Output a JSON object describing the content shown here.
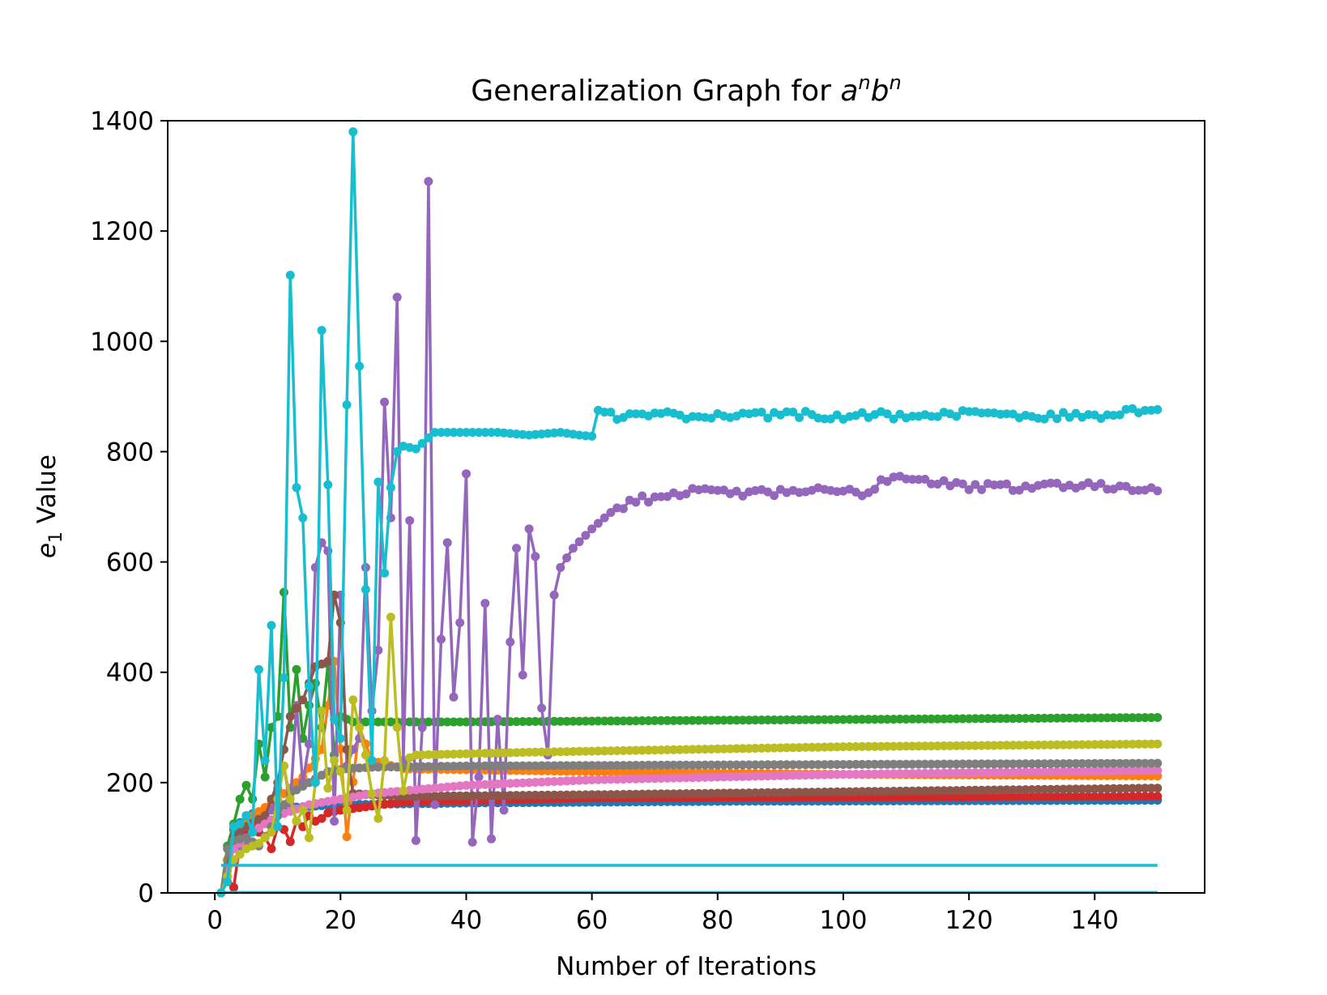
{
  "chart_data": {
    "type": "line",
    "title": "Generalization Graph for ",
    "title_math": {
      "a": "a",
      "exp1": "n",
      "b": "b",
      "exp2": "n"
    },
    "xlabel": "Number of Iterations",
    "ylabel": {
      "symbol": "e",
      "subscript": "1",
      "rest": " Value"
    },
    "xlim": [
      -7.5,
      157.5
    ],
    "ylim": [
      0,
      1400
    ],
    "xticks": [
      0,
      20,
      40,
      60,
      80,
      100,
      120,
      140
    ],
    "yticks": [
      0,
      200,
      400,
      600,
      800,
      1000,
      1200,
      1400
    ],
    "series": [
      {
        "name": "series-1",
        "color": "#1f77b4",
        "knots": [
          [
            1,
            0
          ],
          [
            2,
            60
          ],
          [
            3,
            115
          ],
          [
            5,
            140
          ],
          [
            8,
            150
          ],
          [
            12,
            155
          ],
          [
            20,
            160
          ],
          [
            40,
            163
          ],
          [
            80,
            166
          ],
          [
            150,
            168
          ]
        ]
      },
      {
        "name": "series-2",
        "color": "#ff7f0e",
        "knots": [
          [
            1,
            0
          ],
          [
            2,
            60
          ],
          [
            3,
            100
          ],
          [
            6,
            140
          ],
          [
            10,
            170
          ],
          [
            14,
            210
          ],
          [
            17,
            260
          ],
          [
            19,
            420
          ],
          [
            21,
            102
          ],
          [
            23,
            300
          ],
          [
            25,
            240
          ],
          [
            30,
            225
          ],
          [
            60,
            220
          ],
          [
            100,
            215
          ],
          [
            150,
            212
          ]
        ]
      },
      {
        "name": "series-3",
        "color": "#2ca02c",
        "knots": [
          [
            1,
            0
          ],
          [
            2,
            85
          ],
          [
            3,
            125
          ],
          [
            4,
            170
          ],
          [
            5,
            195
          ],
          [
            6,
            170
          ],
          [
            7,
            270
          ],
          [
            8,
            210
          ],
          [
            9,
            300
          ],
          [
            10,
            320
          ],
          [
            11,
            545
          ],
          [
            12,
            300
          ],
          [
            13,
            405
          ],
          [
            14,
            280
          ],
          [
            15,
            340
          ],
          [
            16,
            380
          ],
          [
            17,
            300
          ],
          [
            18,
            415
          ],
          [
            19,
            250
          ],
          [
            20,
            320
          ],
          [
            22,
            310
          ],
          [
            40,
            310
          ],
          [
            80,
            313
          ],
          [
            150,
            318
          ]
        ]
      },
      {
        "name": "series-4",
        "color": "#d62728",
        "knots": [
          [
            1,
            0
          ],
          [
            2,
            30
          ],
          [
            3,
            10
          ],
          [
            4,
            90
          ],
          [
            6,
            120
          ],
          [
            8,
            100
          ],
          [
            9,
            80
          ],
          [
            10,
            120
          ],
          [
            11,
            115
          ],
          [
            12,
            93
          ],
          [
            13,
            130
          ],
          [
            14,
            120
          ],
          [
            15,
            140
          ],
          [
            16,
            130
          ],
          [
            17,
            135
          ],
          [
            18,
            145
          ],
          [
            20,
            150
          ],
          [
            30,
            165
          ],
          [
            60,
            172
          ],
          [
            150,
            175
          ]
        ]
      },
      {
        "name": "series-5",
        "color": "#9467bd",
        "knots": [
          [
            1,
            0
          ],
          [
            3,
            60
          ],
          [
            6,
            110
          ],
          [
            9,
            150
          ],
          [
            11,
            230
          ],
          [
            12,
            160
          ],
          [
            13,
            340
          ],
          [
            14,
            200
          ],
          [
            15,
            270
          ],
          [
            16,
            590
          ],
          [
            17,
            635
          ],
          [
            18,
            620
          ],
          [
            19,
            130
          ],
          [
            20,
            540
          ],
          [
            21,
            230
          ],
          [
            22,
            260
          ],
          [
            23,
            280
          ],
          [
            24,
            590
          ],
          [
            25,
            330
          ],
          [
            26,
            440
          ],
          [
            27,
            890
          ],
          [
            28,
            680
          ],
          [
            29,
            1080
          ],
          [
            30,
            240
          ],
          [
            31,
            675
          ],
          [
            32,
            95
          ],
          [
            33,
            300
          ],
          [
            34,
            1290
          ],
          [
            35,
            160
          ],
          [
            36,
            460
          ],
          [
            37,
            635
          ],
          [
            38,
            355
          ],
          [
            39,
            490
          ],
          [
            40,
            760
          ],
          [
            41,
            92
          ],
          [
            42,
            210
          ],
          [
            43,
            525
          ],
          [
            44,
            98
          ],
          [
            45,
            315
          ],
          [
            46,
            150
          ],
          [
            47,
            455
          ],
          [
            48,
            625
          ],
          [
            49,
            395
          ],
          [
            50,
            660
          ],
          [
            51,
            610
          ],
          [
            52,
            335
          ],
          [
            53,
            250
          ],
          [
            54,
            540
          ],
          [
            55,
            590
          ],
          [
            57,
            625
          ],
          [
            60,
            660
          ],
          [
            63,
            690
          ],
          [
            66,
            710
          ],
          [
            70,
            717
          ],
          [
            74,
            727
          ],
          [
            90,
            725
          ],
          [
            92,
            730
          ],
          [
            104,
            725
          ],
          [
            106,
            750
          ],
          [
            110,
            755
          ],
          [
            115,
            745
          ],
          [
            118,
            738
          ],
          [
            125,
            735
          ],
          [
            135,
            740
          ],
          [
            150,
            735
          ]
        ]
      },
      {
        "name": "series-6",
        "color": "#8c564b",
        "knots": [
          [
            1,
            0
          ],
          [
            2,
            50
          ],
          [
            3,
            100
          ],
          [
            5,
            120
          ],
          [
            8,
            140
          ],
          [
            10,
            200
          ],
          [
            12,
            320
          ],
          [
            14,
            350
          ],
          [
            16,
            410
          ],
          [
            18,
            420
          ],
          [
            19,
            540
          ],
          [
            20,
            490
          ],
          [
            21,
            260
          ],
          [
            22,
            180
          ],
          [
            30,
            175
          ],
          [
            60,
            178
          ],
          [
            150,
            190
          ]
        ]
      },
      {
        "name": "series-7",
        "color": "#e377c2",
        "knots": [
          [
            1,
            0
          ],
          [
            2,
            40
          ],
          [
            3,
            80
          ],
          [
            6,
            110
          ],
          [
            10,
            140
          ],
          [
            15,
            160
          ],
          [
            20,
            170
          ],
          [
            25,
            180
          ],
          [
            30,
            185
          ],
          [
            40,
            195
          ],
          [
            60,
            205
          ],
          [
            100,
            215
          ],
          [
            150,
            222
          ]
        ]
      },
      {
        "name": "series-8",
        "color": "#7f7f7f",
        "knots": [
          [
            1,
            0
          ],
          [
            2,
            80
          ],
          [
            3,
            95
          ],
          [
            5,
            100
          ],
          [
            7,
            85
          ],
          [
            9,
            120
          ],
          [
            12,
            180
          ],
          [
            15,
            200
          ],
          [
            18,
            220
          ],
          [
            21,
            225
          ],
          [
            25,
            228
          ],
          [
            40,
            230
          ],
          [
            80,
            232
          ],
          [
            150,
            235
          ]
        ]
      },
      {
        "name": "series-9",
        "color": "#bcbd22",
        "knots": [
          [
            1,
            0
          ],
          [
            2,
            30
          ],
          [
            3,
            60
          ],
          [
            5,
            80
          ],
          [
            7,
            90
          ],
          [
            9,
            110
          ],
          [
            11,
            230
          ],
          [
            12,
            170
          ],
          [
            13,
            130
          ],
          [
            14,
            150
          ],
          [
            15,
            100
          ],
          [
            16,
            200
          ],
          [
            17,
            330
          ],
          [
            18,
            190
          ],
          [
            19,
            240
          ],
          [
            20,
            220
          ],
          [
            21,
            150
          ],
          [
            22,
            350
          ],
          [
            23,
            300
          ],
          [
            24,
            250
          ],
          [
            25,
            180
          ],
          [
            26,
            135
          ],
          [
            27,
            240
          ],
          [
            28,
            500
          ],
          [
            29,
            300
          ],
          [
            30,
            185
          ],
          [
            31,
            245
          ],
          [
            32,
            250
          ],
          [
            50,
            255
          ],
          [
            100,
            265
          ],
          [
            150,
            270
          ]
        ]
      },
      {
        "name": "series-10",
        "color": "#17becf",
        "knots": [
          [
            1,
            0
          ],
          [
            2,
            20
          ],
          [
            3,
            120
          ],
          [
            4,
            125
          ],
          [
            5,
            140
          ],
          [
            6,
            110
          ],
          [
            7,
            405
          ],
          [
            8,
            240
          ],
          [
            9,
            485
          ],
          [
            10,
            120
          ],
          [
            11,
            390
          ],
          [
            12,
            1120
          ],
          [
            13,
            735
          ],
          [
            14,
            680
          ],
          [
            15,
            375
          ],
          [
            16,
            200
          ],
          [
            17,
            1020
          ],
          [
            18,
            740
          ],
          [
            19,
            315
          ],
          [
            20,
            280
          ],
          [
            21,
            885
          ],
          [
            22,
            1380
          ],
          [
            23,
            955
          ],
          [
            24,
            550
          ],
          [
            25,
            240
          ],
          [
            26,
            745
          ],
          [
            27,
            580
          ],
          [
            28,
            735
          ],
          [
            29,
            800
          ],
          [
            30,
            810
          ],
          [
            32,
            805
          ],
          [
            34,
            825
          ],
          [
            35,
            835
          ],
          [
            40,
            835
          ],
          [
            45,
            835
          ],
          [
            50,
            830
          ],
          [
            55,
            835
          ],
          [
            58,
            830
          ],
          [
            60,
            828
          ],
          [
            61,
            875
          ],
          [
            65,
            862
          ],
          [
            70,
            868
          ],
          [
            75,
            865
          ],
          [
            80,
            866
          ],
          [
            90,
            868
          ],
          [
            100,
            865
          ],
          [
            110,
            866
          ],
          [
            120,
            868
          ],
          [
            130,
            865
          ],
          [
            140,
            866
          ],
          [
            150,
            875
          ]
        ]
      },
      {
        "name": "flat-1",
        "color": "#17becf",
        "flat": true,
        "knots": [
          [
            1,
            50
          ],
          [
            150,
            50
          ]
        ]
      },
      {
        "name": "flat-2",
        "color": "#17becf",
        "flat": true,
        "knots": [
          [
            1,
            1
          ],
          [
            150,
            1
          ]
        ]
      }
    ]
  }
}
